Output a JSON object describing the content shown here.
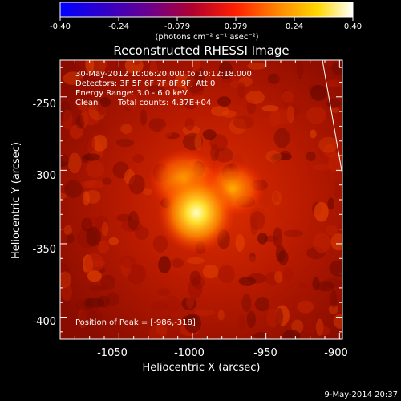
{
  "colorbar": {
    "ticks": [
      "-0.40",
      "-0.24",
      "-0.079",
      "0.079",
      "0.24",
      "0.40"
    ],
    "units": "(photons cm⁻² s⁻¹ asec⁻²)",
    "range": [
      -0.4,
      0.4
    ],
    "colormap": "blue-purple-red-yellow-white"
  },
  "chart_data": {
    "type": "heatmap",
    "title": "Reconstructed RHESSI Image",
    "xlabel": "Heliocentric X (arcsec)",
    "ylabel": "Heliocentric Y (arcsec)",
    "xlim": [
      -1090,
      -898
    ],
    "ylim": [
      -415,
      -225
    ],
    "x_ticks": [
      "-1050",
      "-1000",
      "-950",
      "-900"
    ],
    "y_ticks": [
      "-250",
      "-300",
      "-350",
      "-400"
    ],
    "x_tick_values": [
      -1050,
      -1000,
      -950,
      -900
    ],
    "y_tick_values": [
      -250,
      -300,
      -350,
      -400
    ],
    "peak": {
      "x": -986,
      "y": -318
    },
    "annotations": {
      "time": "30-May-2012 10:06:20.000 to 10:12:18.000",
      "detectors": "Detectors: 3F 5F 6F 7F 8F 9F, Att 0",
      "energy": "Energy Range: 3.0 - 6.0 keV",
      "clean": "Clean",
      "counts": "Total counts: 4.37E+04",
      "peak_text": "Position of Peak = [-986,-318]"
    }
  },
  "footer": {
    "date": "9-May-2014 20:37"
  }
}
